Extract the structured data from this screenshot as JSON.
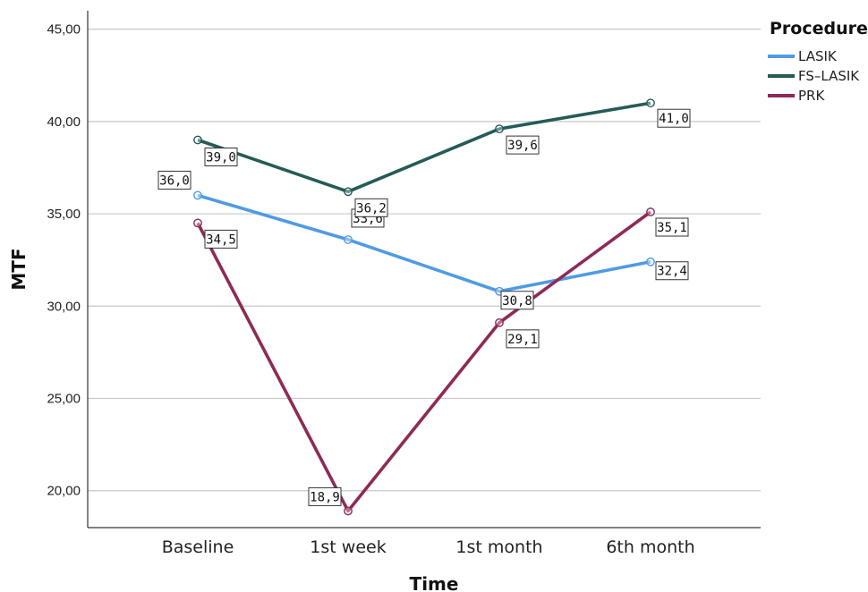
{
  "chart_data": {
    "type": "line",
    "categories": [
      "Baseline",
      "1st week",
      "1st month",
      "6th month"
    ],
    "xlabel": "Time",
    "ylabel": "MTF",
    "ylim": [
      18,
      46
    ],
    "yticks": [
      "20,00",
      "25,00",
      "30,00",
      "35,00",
      "40,00",
      "45,00"
    ],
    "ytick_values": [
      20,
      25,
      30,
      35,
      40,
      45
    ],
    "grid": true,
    "legend": {
      "title": "Procedure",
      "placement": "top-right"
    },
    "series": [
      {
        "name": "LASIK",
        "color": "#4f9be3",
        "values": [
          36.0,
          33.6,
          30.8,
          32.4
        ],
        "labels": [
          "36,0",
          "33,6",
          "30,8",
          "32,4"
        ]
      },
      {
        "name": "FS–LASIK",
        "color": "#255b57",
        "values": [
          39.0,
          36.2,
          39.6,
          41.0
        ],
        "labels": [
          "39,0",
          "36,2",
          "39,6",
          "41,0"
        ]
      },
      {
        "name": "PRK",
        "color": "#8e2a57",
        "values": [
          34.5,
          18.9,
          29.1,
          35.1
        ],
        "labels": [
          "34,5",
          "18,9",
          "29,1",
          "35,1"
        ]
      }
    ]
  }
}
